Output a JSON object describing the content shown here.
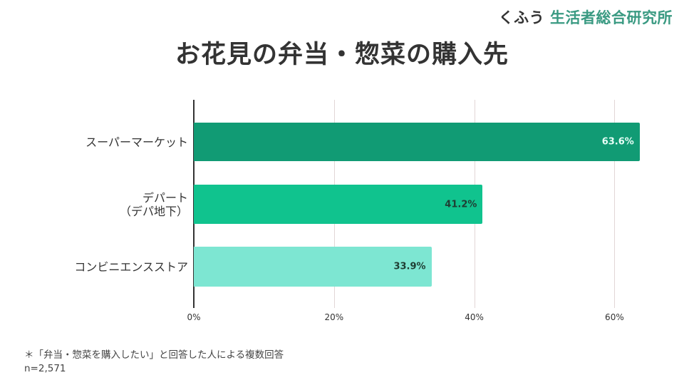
{
  "brand": {
    "prefix": "くふう",
    "name": "生活者総合研究所"
  },
  "title": "お花見の弁当・惣菜の購入先",
  "chart_data": {
    "type": "bar",
    "orientation": "horizontal",
    "title": "お花見の弁当・惣菜の購入先",
    "categories": [
      "スーパーマーケット",
      "デパート（デパ地下）",
      "コンビニエンスストア"
    ],
    "category_lines": [
      [
        "スーパーマーケット"
      ],
      [
        "デパート",
        "（デパ地下）"
      ],
      [
        "コンビニエンスストア"
      ]
    ],
    "values": [
      63.6,
      41.2,
      33.9
    ],
    "value_labels": [
      "63.6%",
      "41.2%",
      "33.9%"
    ],
    "bar_colors": [
      "#119b74",
      "#10c38e",
      "#7de6d2"
    ],
    "label_colors": [
      "#e8fff7",
      "#1f3d33",
      "#1f3d33"
    ],
    "xlim": [
      0,
      64
    ],
    "xticks": [
      0,
      20,
      40,
      60
    ],
    "xtick_labels": [
      "0%",
      "20%",
      "40%",
      "60%"
    ],
    "xlabel": "",
    "ylabel": "",
    "grid": true,
    "legend": null
  },
  "footnote": {
    "line1": "＊「弁当・惣菜を購入したい」と回答した人による複数回答",
    "line2": "n=2,571"
  }
}
